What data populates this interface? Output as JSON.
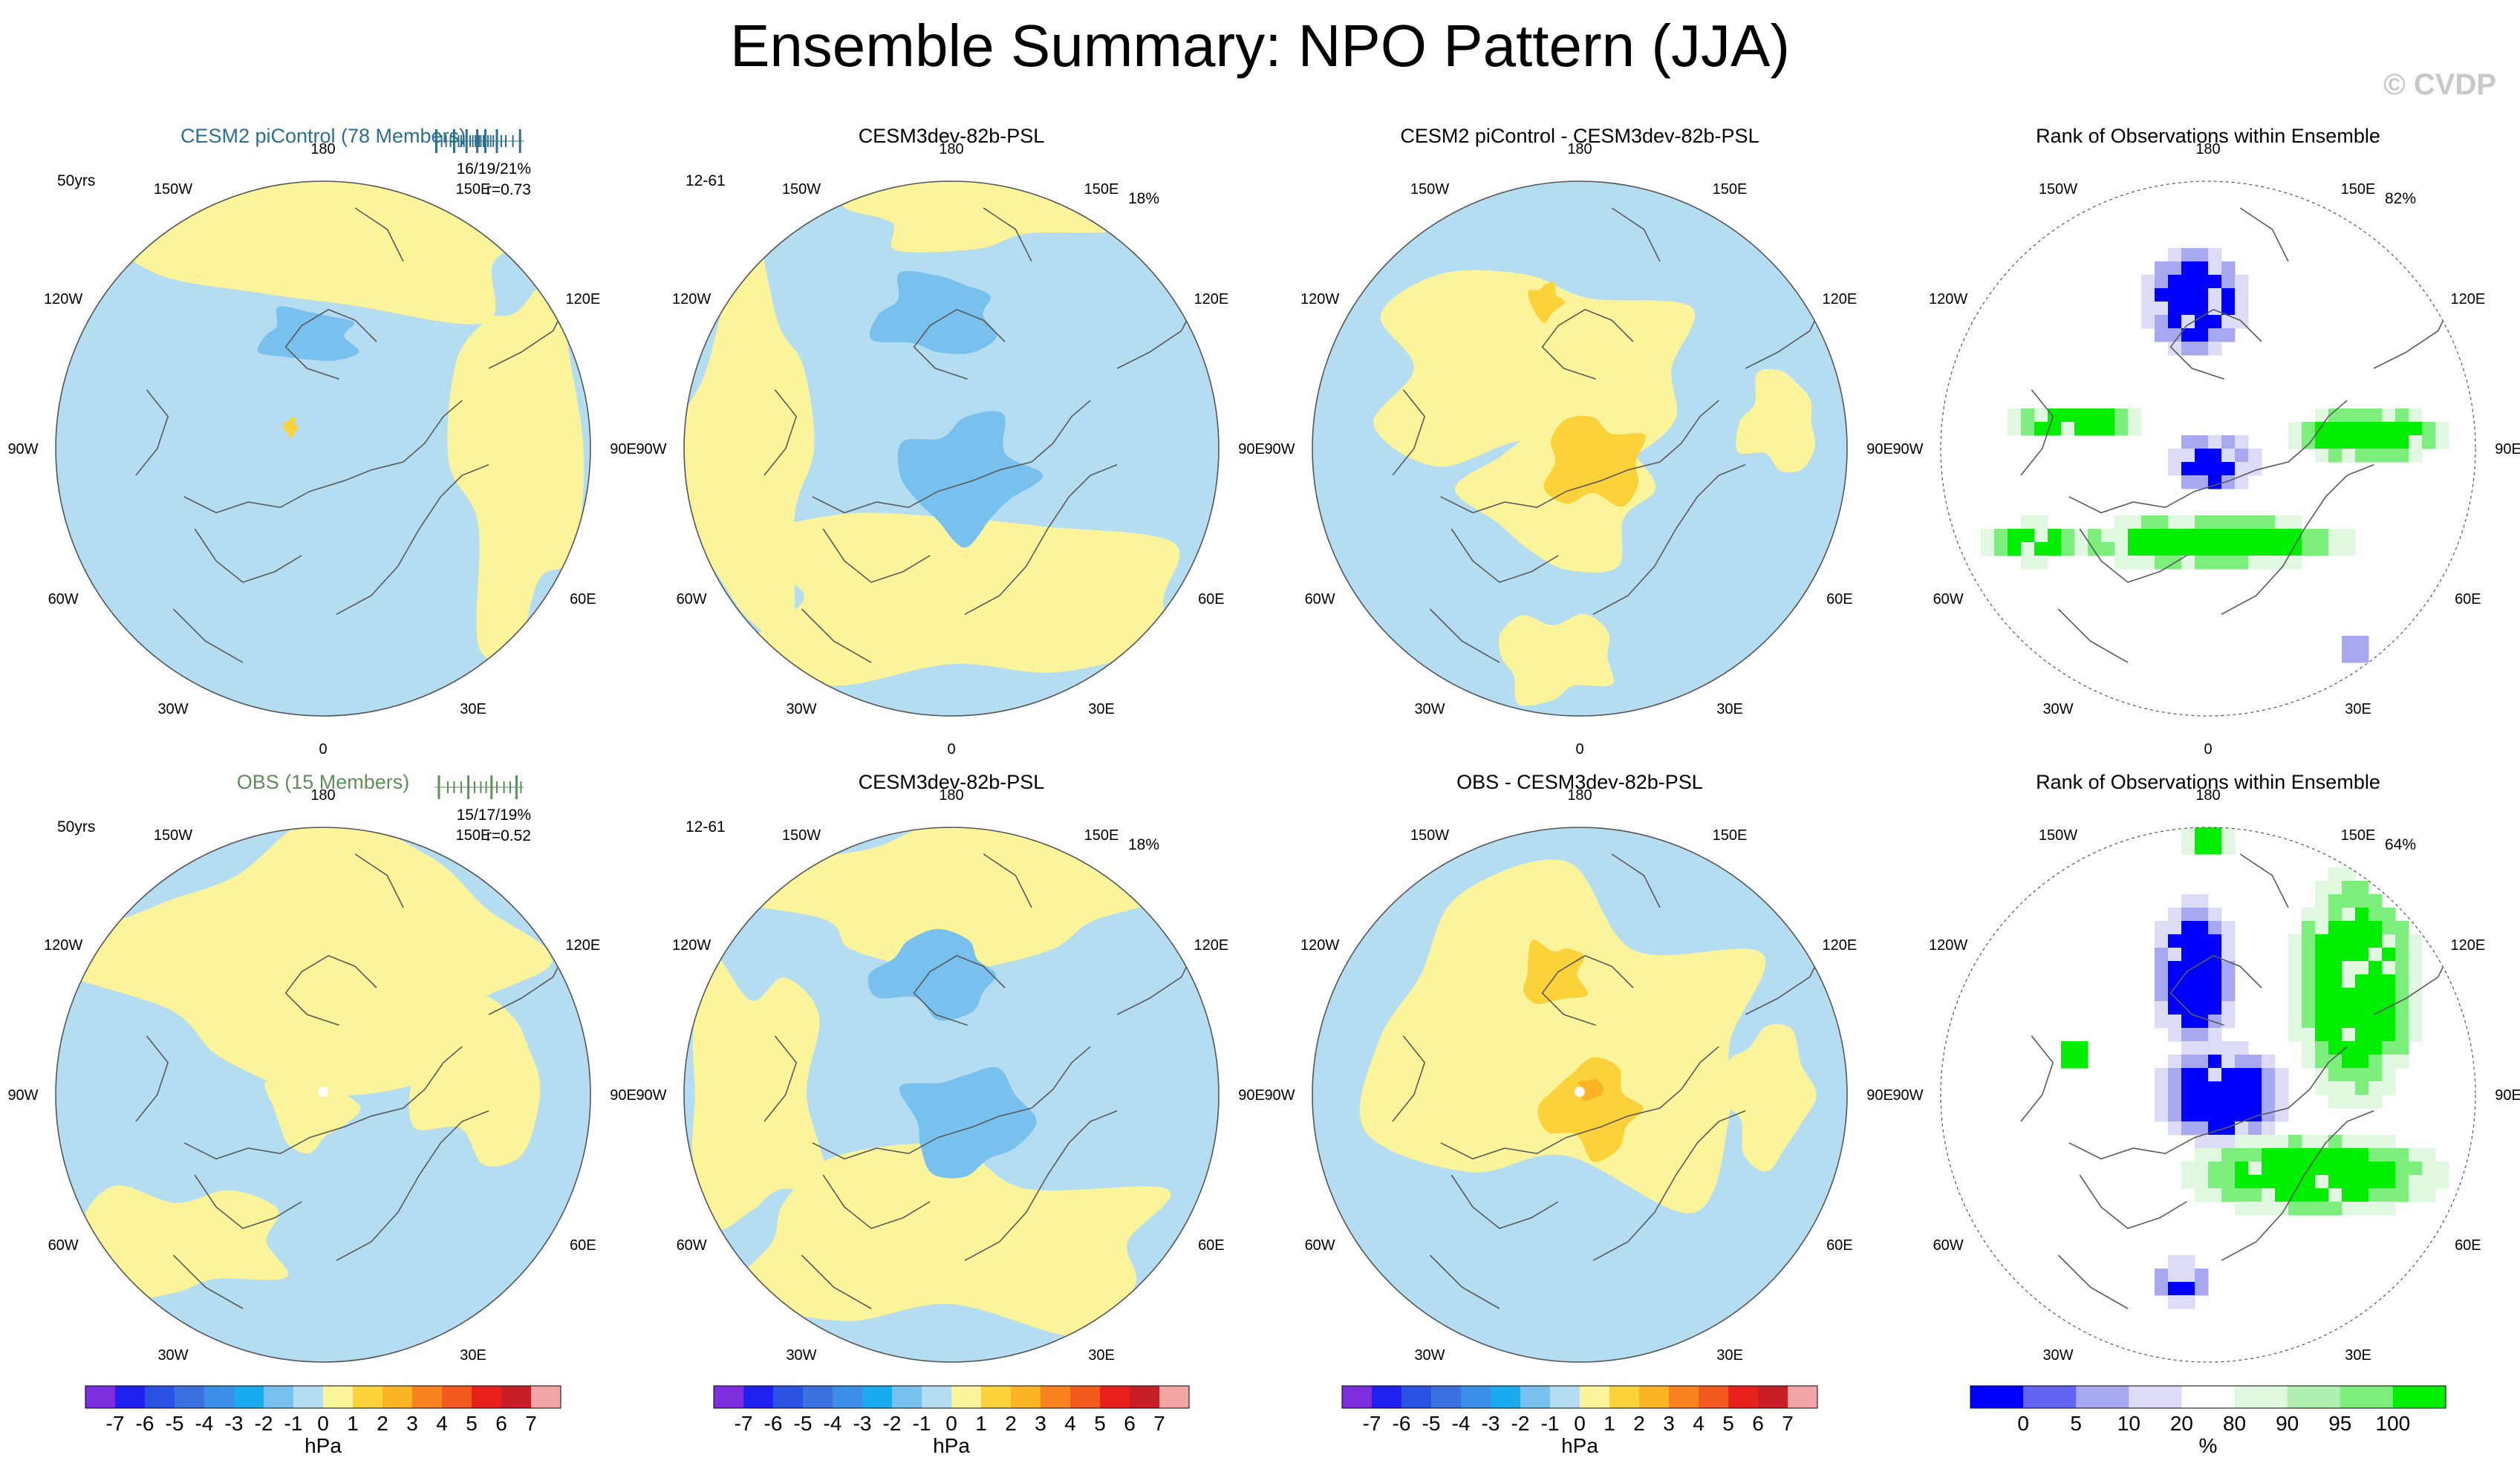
{
  "figure": {
    "title": "Ensemble Summary: NPO Pattern (JJA)",
    "copyright": "© CVDP"
  },
  "chart_data": [
    {
      "type": "heatmap",
      "projection": "north-polar-stereographic",
      "title": "CESM2 piControl (78 Members)",
      "title_color": "#2a6f8f",
      "left_label": "50yrs",
      "right_label": "16/19/21%",
      "right_label2": "r=0.73",
      "spread_ticks": [
        0.02,
        0.08,
        0.13,
        0.18,
        0.22,
        0.27,
        0.3,
        0.33,
        0.36,
        0.4,
        0.43,
        0.46,
        0.48,
        0.5,
        0.52,
        0.55,
        0.57,
        0.6,
        0.63,
        0.66,
        0.7,
        0.75,
        0.8,
        0.88,
        0.96
      ],
      "spread_color": "#2a6f8f",
      "longitude_labels": [
        "180",
        "150E",
        "120E",
        "90E",
        "60E",
        "30E",
        "0",
        "30W",
        "60W",
        "90W",
        "120W",
        "150W"
      ],
      "units": "hPa",
      "field_summary": "mostly negative (-1 to 0) with positive (0 to 1) over North Pacific sector"
    },
    {
      "type": "heatmap",
      "projection": "north-polar-stereographic",
      "title": "CESM3dev-82b-PSL",
      "left_label": "12-61",
      "right_label": "18%",
      "longitude_labels": [
        "180",
        "150E",
        "120E",
        "90E",
        "60E",
        "30E",
        "0",
        "30W",
        "60W",
        "90W",
        "120W",
        "150W"
      ],
      "units": "hPa"
    },
    {
      "type": "heatmap",
      "projection": "north-polar-stereographic",
      "title": "CESM2 piControl - CESM3dev-82b-PSL",
      "longitude_labels": [
        "180",
        "150E",
        "120E",
        "90E",
        "60E",
        "30E",
        "0",
        "30W",
        "60W",
        "90W",
        "120W",
        "150W"
      ],
      "units": "hPa"
    },
    {
      "type": "heatmap",
      "projection": "north-polar-stereographic",
      "title": "Rank of Observations within Ensemble",
      "right_label": "82%",
      "longitude_labels": [
        "180",
        "150E",
        "120E",
        "90E",
        "60E",
        "30E",
        "0",
        "30W",
        "60W",
        "90W",
        "120W",
        "150W"
      ],
      "units": "%"
    },
    {
      "type": "heatmap",
      "projection": "north-polar-stereographic",
      "title": "OBS (15 Members)",
      "title_color": "#5d8f5a",
      "left_label": "50yrs",
      "right_label": "15/17/19%",
      "right_label2": "r=0.52",
      "spread_ticks": [
        0.05,
        0.15,
        0.22,
        0.3,
        0.38,
        0.45,
        0.52,
        0.58,
        0.64,
        0.7,
        0.78,
        0.85,
        0.92,
        0.97
      ],
      "spread_color": "#5d8f5a",
      "longitude_labels": [
        "180",
        "150E",
        "120E",
        "90E",
        "60E",
        "30E",
        "0",
        "30W",
        "60W",
        "90W",
        "120W",
        "150W"
      ],
      "units": "hPa"
    },
    {
      "type": "heatmap",
      "projection": "north-polar-stereographic",
      "title": "CESM3dev-82b-PSL",
      "left_label": "12-61",
      "right_label": "18%",
      "longitude_labels": [
        "180",
        "150E",
        "120E",
        "90E",
        "60E",
        "30E",
        "0",
        "30W",
        "60W",
        "90W",
        "120W",
        "150W"
      ],
      "units": "hPa"
    },
    {
      "type": "heatmap",
      "projection": "north-polar-stereographic",
      "title": "OBS - CESM3dev-82b-PSL",
      "longitude_labels": [
        "180",
        "150E",
        "120E",
        "90E",
        "60E",
        "30E",
        "0",
        "30W",
        "60W",
        "90W",
        "120W",
        "150W"
      ],
      "units": "hPa"
    },
    {
      "type": "heatmap",
      "projection": "north-polar-stereographic",
      "title": "Rank of Observations within Ensemble",
      "right_label": "64%",
      "longitude_labels": [
        "180",
        "150E",
        "120E",
        "90E",
        "60E",
        "30E",
        "0",
        "30W",
        "60W",
        "90W",
        "120W",
        "150W"
      ],
      "units": "%"
    }
  ],
  "colorbars": {
    "hpa": {
      "units": "hPa",
      "labels": [
        "-7",
        "-6",
        "-5",
        "-4",
        "-3",
        "-2",
        "-1",
        "0",
        "1",
        "2",
        "3",
        "4",
        "5",
        "6",
        "7"
      ],
      "colors": [
        "#7d2fe0",
        "#2020f0",
        "#2a52e0",
        "#3a70e0",
        "#3a8ee6",
        "#1aaaee",
        "#78c0ee",
        "#b4ddf2",
        "#fbf49a",
        "#fcd23a",
        "#fcb424",
        "#f98220",
        "#f35a1e",
        "#e8201c",
        "#c81e28",
        "#f3a5a5"
      ]
    },
    "rank": {
      "units": "%",
      "labels": [
        "0",
        "5",
        "10",
        "20",
        "80",
        "90",
        "95",
        "100"
      ],
      "colors": [
        "#0000ff",
        "#6464f4",
        "#a8a8f0",
        "#dcdcf6",
        "#ffffff",
        "#e0f8e0",
        "#b0f0b0",
        "#7cee7c",
        "#00ee00"
      ]
    }
  },
  "palette": {
    "neg1": "#b4ddf2",
    "neg2": "#78c0ee",
    "pos1": "#fbf49a",
    "pos2": "#fcd23a",
    "pos3": "#fcb424",
    "rank_blue": "#0000ff",
    "rank_blue2": "#a8a8f0",
    "rank_blue3": "#dcdcf6",
    "rank_green": "#00ee00",
    "rank_green2": "#7cee7c",
    "rank_green3": "#e0f8e0"
  }
}
